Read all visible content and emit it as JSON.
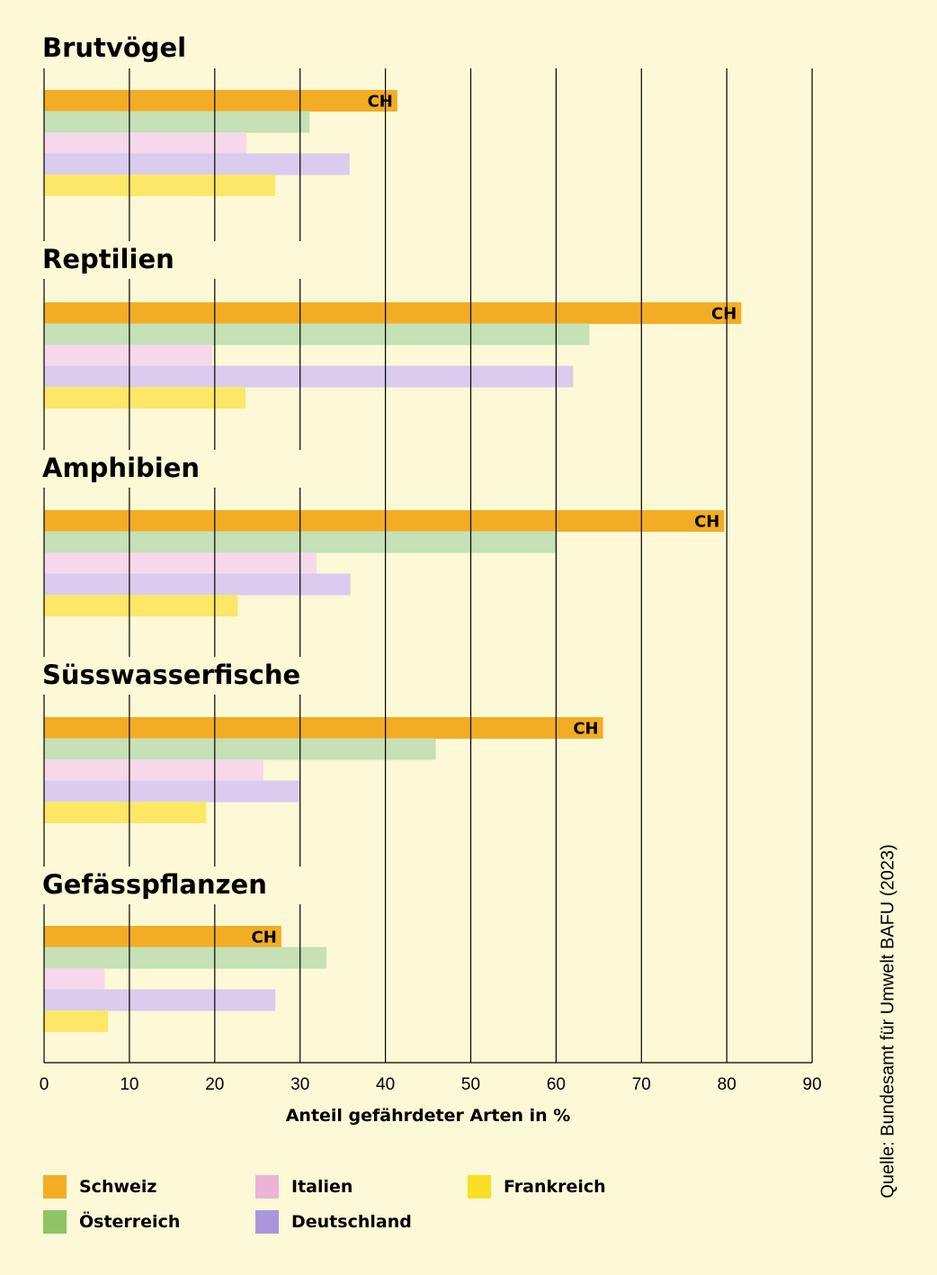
{
  "chart_data": {
    "type": "bar",
    "orientation": "horizontal",
    "xlabel": "Anteil gefährdeter Arten in %",
    "xlim": [
      0,
      90
    ],
    "ticks": [
      0,
      10,
      20,
      30,
      40,
      50,
      60,
      70,
      80,
      90
    ],
    "grid": true,
    "highlight_label": "CH",
    "groups": [
      "Brutvögel",
      "Reptilien",
      "Amphibien",
      "Süsswasserfische",
      "Gefässpflanzen"
    ],
    "series": [
      {
        "name": "Schweiz",
        "color": "#f2ad25",
        "values": [
          41.4,
          81.7,
          79.7,
          65.5,
          27.8
        ]
      },
      {
        "name": "Österreich",
        "color": "#c5e1b5",
        "values": [
          31.1,
          63.9,
          60.0,
          45.9,
          33.1
        ]
      },
      {
        "name": "Italien",
        "color": "#f5d8ea",
        "values": [
          23.7,
          19.7,
          31.9,
          25.7,
          7.1
        ]
      },
      {
        "name": "Deutschland",
        "color": "#d9ccee",
        "values": [
          35.8,
          62.0,
          35.9,
          29.9,
          27.1
        ]
      },
      {
        "name": "Frankreich",
        "color": "#fce766",
        "values": [
          27.1,
          23.6,
          22.7,
          19.0,
          7.5
        ]
      }
    ]
  },
  "legend": [
    {
      "label": "Schweiz",
      "color": "#f2ad25"
    },
    {
      "label": "Italien",
      "color": "#ecb3d6"
    },
    {
      "label": "Frankreich",
      "color": "#f8df24"
    },
    {
      "label": "Österreich",
      "color": "#8fc464"
    },
    {
      "label": "Deutschland",
      "color": "#a996dc"
    }
  ],
  "source": "Quelle: Bundesamt für Umwelt BAFU (2023)"
}
